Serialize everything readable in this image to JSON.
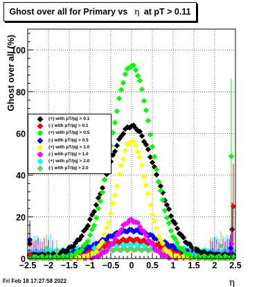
{
  "title_prefix": "Ghost over all for Primary vs",
  "title_eta": "η",
  "title_suffix": "at pT > 0.11",
  "timestamp": "Fri Feb 18 17:27:58 2022",
  "chart_data": {
    "type": "scatter",
    "title": "Ghost over all for Primary vs η at pT > 0.11",
    "xlabel": "η",
    "ylabel": "Ghost over all (%)",
    "xlim": [
      -2.5,
      2.5
    ],
    "ylim": [
      0,
      110
    ],
    "x_ticks": [
      -2.5,
      -2,
      -1.5,
      -1,
      -0.5,
      0,
      0.5,
      1,
      1.5,
      2,
      2.5
    ],
    "x_tick_labels": [
      "−2.5",
      "−2",
      "−1.5",
      "−1",
      "−0.5",
      "0",
      "0.5",
      "1",
      "1.5",
      "2",
      "2.5"
    ],
    "y_ticks": [
      0,
      20,
      40,
      60,
      80,
      100
    ],
    "y_tick_labels": [
      "0",
      "20",
      "40",
      "60",
      "80",
      "100"
    ],
    "grid": true,
    "legend_position": "middle-left",
    "series": [
      {
        "name": "(+) with pT/|q| > 0.1",
        "color": "#000000",
        "peak": 62,
        "width": 0.62,
        "base": 1.5
      },
      {
        "name": "(-) with pT/|q| > 0.1",
        "color": "#ff0000",
        "peak": 8,
        "width": 0.7,
        "base": 1.0
      },
      {
        "name": "(+) with pT/|q| > 0.5",
        "color": "#00ff00",
        "peak": 92,
        "width": 0.48,
        "base": 0.5
      },
      {
        "name": "(-) with pT/|q| > 0.5",
        "color": "#0000ff",
        "peak": 12,
        "width": 0.68,
        "base": 1.5
      },
      {
        "name": "(+) with pT/|q| > 1.0",
        "color": "#ffff00",
        "peak": 56,
        "width": 0.36,
        "base": 0.3
      },
      {
        "name": "(-) with pT/|q| > 1.0",
        "color": "#ff00ff",
        "peak": 18,
        "width": 0.34,
        "base": 0.3
      },
      {
        "name": "(+) with pT/|q| > 2.0",
        "color": "#00ffff",
        "peak": 4,
        "width": 0.9,
        "base": 3.0
      },
      {
        "name": "(-) with pT/|q| > 2.0",
        "color": "#66cc66",
        "peak": 2,
        "width": 1.0,
        "base": 2.5
      }
    ],
    "edge_points": [
      {
        "x": -2.45,
        "y": 9,
        "color": "#0000ff"
      },
      {
        "x": -2.45,
        "y": 7,
        "color": "#000000"
      },
      {
        "x": -2.45,
        "y": 2,
        "color": "#ff0000"
      },
      {
        "x": -2.05,
        "y": 5,
        "color": "#66cc66"
      },
      {
        "x": -1.95,
        "y": 4,
        "color": "#00ffff"
      },
      {
        "x": -1.8,
        "y": 3.5,
        "color": "#66cc66"
      },
      {
        "x": -0.9,
        "y": 5,
        "color": "#00ffff"
      },
      {
        "x": 1.5,
        "y": 2,
        "color": "#00ffff"
      },
      {
        "x": 2.15,
        "y": 6,
        "color": "#66cc66"
      },
      {
        "x": 2.4,
        "y": 49,
        "color": "#00ff00"
      },
      {
        "x": 2.42,
        "y": 14,
        "color": "#000000"
      },
      {
        "x": 2.45,
        "y": 25,
        "color": "#ff0000"
      },
      {
        "x": 2.4,
        "y": 7,
        "color": "#ff00ff"
      },
      {
        "x": 2.38,
        "y": 5,
        "color": "#0000ff"
      }
    ]
  }
}
